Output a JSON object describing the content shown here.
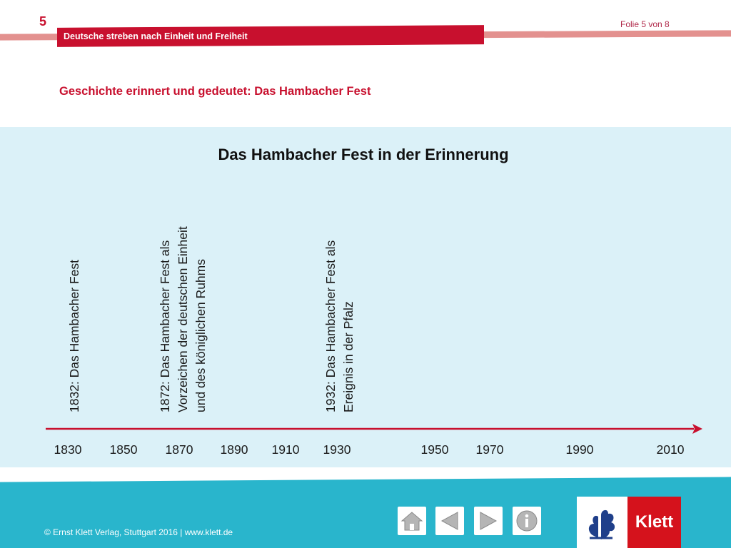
{
  "header": {
    "chapter_number": "5",
    "chapter_title": "Deutsche streben nach Einheit und Freiheit",
    "slide_counter": "Folie 5 von 8",
    "subtitle": "Geschichte erinnert und gedeutet: Das Hambacher Fest"
  },
  "panel": {
    "title": "Das Hambacher Fest in der Erinnerung",
    "events": [
      {
        "year": 1832,
        "lines": [
          "1832: Das Hambacher Fest"
        ]
      },
      {
        "year": 1872,
        "lines": [
          "1872: Das Hambacher Fest als",
          "Vorzeichen der deutschen Einheit",
          "und des königlichen Ruhms"
        ]
      },
      {
        "year": 1932,
        "lines": [
          "1932: Das Hambacher Fest als",
          "Ereignis in der Pfalz"
        ]
      }
    ],
    "timeline_years": [
      "1830",
      "1850",
      "1870",
      "1890",
      "1910",
      "1930",
      "1950",
      "1970",
      "1990",
      "2010"
    ]
  },
  "footer": {
    "copyright": "© Ernst Klett Verlag, Stuttgart 2016 | www.klett.de",
    "nav_buttons": [
      "home-icon",
      "previous-icon",
      "next-icon",
      "info-icon"
    ],
    "logo_text": "Klett"
  },
  "colors": {
    "brand_red": "#c8102e",
    "panel_bg": "#dbf1f8",
    "footer_teal": "#29b5cc",
    "timeline_red": "#c8102e",
    "klett_red": "#d5121c"
  }
}
